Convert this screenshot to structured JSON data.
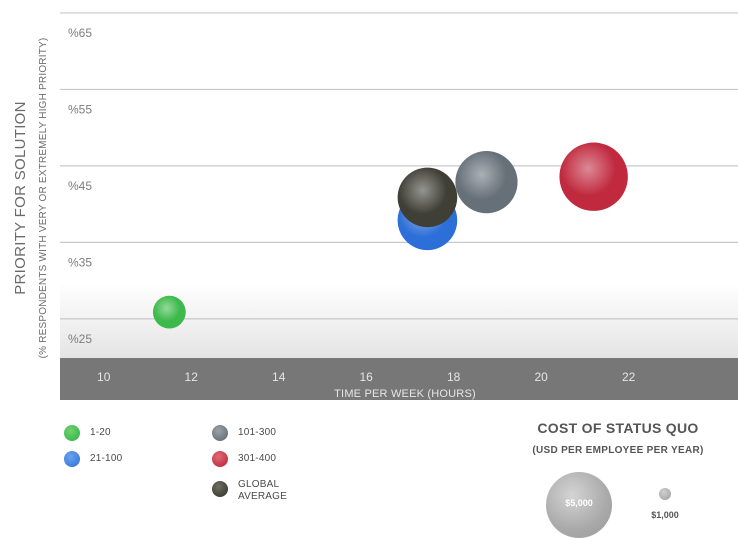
{
  "chart_data": {
    "type": "scatter",
    "ylabel": "PRIORITY FOR SOLUTION",
    "ylabel_sub": "(% RESPONDENTS WITH VERY OR EXTREMELY HIGH PRIORITY)",
    "xlabel": "TIME PER WEEK (HOURS)",
    "xlim": [
      9,
      24.5
    ],
    "ylim": [
      22.5,
      68
    ],
    "x_ticks": [
      10,
      12,
      14,
      16,
      18,
      20,
      22
    ],
    "y_ticks": [
      25,
      35,
      45,
      55,
      65
    ],
    "y_tick_labels": [
      "%25",
      "%35",
      "%45",
      "%55",
      "%65"
    ],
    "grid": true,
    "series": [
      {
        "name": "1-20",
        "color": "#3cb94a",
        "x": 11.5,
        "y": 28.5,
        "cost": 500
      },
      {
        "name": "21-100",
        "color": "#2d6fd8",
        "x": 17.4,
        "y": 40.5,
        "cost": 2000
      },
      {
        "name": "101-300",
        "color": "#667078",
        "x": 18.75,
        "y": 45.5,
        "cost": 2200
      },
      {
        "name": "301-400",
        "color": "#c0293e",
        "x": 21.2,
        "y": 46.2,
        "cost": 2700
      },
      {
        "name": "GLOBAL AVERAGE",
        "color": "#3f3f36",
        "x": 17.4,
        "y": 43.5,
        "cost": 2000
      }
    ]
  },
  "legend": {
    "items": [
      {
        "label": "1-20",
        "color": "#2fae44"
      },
      {
        "label": "21-100",
        "color": "#2d6fd8"
      },
      {
        "label": "101-300",
        "color": "#667078"
      },
      {
        "label": "301-400",
        "color": "#c0293e"
      },
      {
        "label": "GLOBAL AVERAGE",
        "color": "#3f3f36"
      }
    ]
  },
  "cost_legend": {
    "title": "COST OF STATUS QUO",
    "subtitle": "(USD PER EMPLOYEE PER YEAR)",
    "large_label": "$5,000",
    "small_label": "$1,000"
  }
}
